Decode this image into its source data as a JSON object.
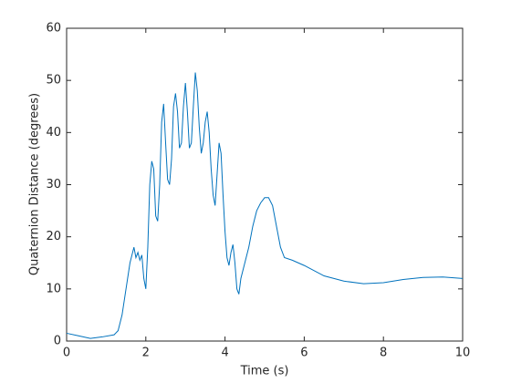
{
  "chart_data": {
    "type": "line",
    "x_label": "Time (s)",
    "y_label": "Quaternion Distance (degrees)",
    "xlim": [
      0,
      10
    ],
    "ylim": [
      0,
      60
    ],
    "xticks": [
      0,
      2,
      4,
      6,
      8,
      10
    ],
    "yticks": [
      0,
      10,
      20,
      30,
      40,
      50,
      60
    ],
    "box": true,
    "series": [
      {
        "color": "#0072BD",
        "x": [
          0,
          0.3,
          0.6,
          0.9,
          1.2,
          1.3,
          1.4,
          1.5,
          1.6,
          1.7,
          1.75,
          1.8,
          1.85,
          1.9,
          1.95,
          2.0,
          2.05,
          2.1,
          2.15,
          2.2,
          2.25,
          2.3,
          2.35,
          2.4,
          2.45,
          2.5,
          2.55,
          2.6,
          2.65,
          2.7,
          2.75,
          2.8,
          2.85,
          2.9,
          2.95,
          3.0,
          3.05,
          3.1,
          3.15,
          3.2,
          3.25,
          3.3,
          3.35,
          3.4,
          3.45,
          3.5,
          3.55,
          3.6,
          3.65,
          3.7,
          3.75,
          3.8,
          3.85,
          3.9,
          3.95,
          4.0,
          4.05,
          4.1,
          4.15,
          4.2,
          4.25,
          4.3,
          4.35,
          4.4,
          4.5,
          4.6,
          4.7,
          4.8,
          4.9,
          5.0,
          5.1,
          5.2,
          5.3,
          5.4,
          5.5,
          5.7,
          6.0,
          6.5,
          7.0,
          7.5,
          8.0,
          8.5,
          9.0,
          9.5,
          10
        ],
        "values": [
          1.5,
          1,
          0.5,
          0.8,
          1.2,
          2,
          5,
          10,
          15,
          18,
          16,
          17,
          15.5,
          16.5,
          12,
          10,
          18,
          30,
          34.5,
          33,
          24,
          23,
          30,
          42,
          45.5,
          38,
          31,
          30,
          35,
          45,
          47.5,
          44,
          37,
          38,
          45,
          49.5,
          44,
          37,
          38,
          45,
          51.5,
          48,
          41,
          36,
          38,
          42,
          44,
          40,
          33,
          28,
          26,
          32,
          38,
          36,
          28,
          21,
          16,
          14.5,
          17,
          18.5,
          15,
          10,
          9,
          12,
          15,
          18,
          22,
          25,
          26.5,
          27.5,
          27.5,
          26,
          22,
          18,
          16,
          15.5,
          14.5,
          12.5,
          11.5,
          11,
          11.2,
          11.8,
          12.2,
          12.3,
          12
        ]
      }
    ]
  }
}
